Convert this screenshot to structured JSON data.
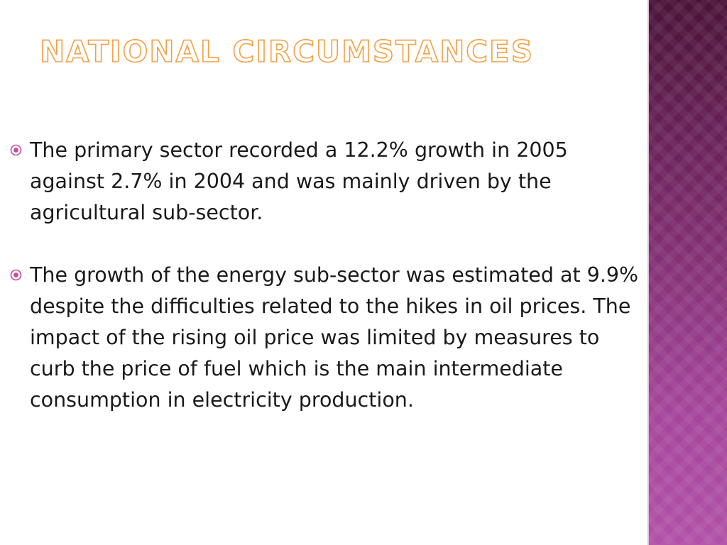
{
  "slide": {
    "title": "National Circumstances",
    "bullets": [
      {
        "icon": "circle-dot-bullet-icon",
        "text": "The primary sector recorded a 12.2% growth in 2005 against 2.7% in 2004 and was mainly driven by the agricultural sub-sector."
      },
      {
        "icon": "circle-dot-bullet-icon",
        "text": "The growth of the energy sub-sector was estimated at 9.9% despite the difficulties related to the hikes in oil prices. The impact of the rising oil price was limited by measures to curb the price of fuel which is the main intermediate consumption in electricity production."
      }
    ]
  },
  "colors": {
    "title_outline": "#f2a046",
    "bullet_marker": "#c94a9a",
    "side_band_top": "#4a1238",
    "side_band_bottom": "#b050a8"
  }
}
